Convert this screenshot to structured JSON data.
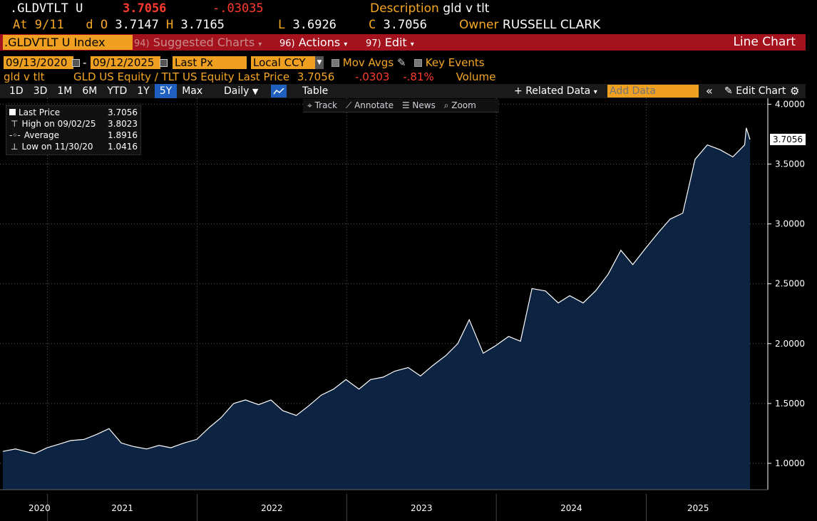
{
  "header": {
    "ticker": ".GLDVTLT U",
    "last": "3.7056",
    "change": "-.03035",
    "desc_label": "Description",
    "desc_value": "gld v tlt",
    "at_label": "At",
    "at_value": "9/11",
    "d_label": "d",
    "o_label": "O",
    "o_value": "3.7147",
    "h_label": "H",
    "h_value": "3.7165",
    "l_label": "L",
    "l_value": "3.6926",
    "c_label": "C",
    "c_value": "3.7056",
    "owner_label": "Owner",
    "owner_value": "RUSSELL CLARK"
  },
  "menubar": {
    "security": ".GLDVTLT U Index",
    "suggested_num": "94)",
    "suggested": "Suggested Charts",
    "actions_num": "96)",
    "actions": "Actions",
    "edit_num": "97)",
    "edit": "Edit",
    "chart_type": "Line Chart"
  },
  "settings": {
    "start_date": "09/13/2020",
    "sep": "-",
    "end_date": "09/12/2025",
    "field": "Last Px",
    "currency": "Local CCY",
    "mov_avgs": "Mov Avgs",
    "key_events": "Key Events"
  },
  "legend_line": {
    "name": "gld v tlt",
    "series": "GLD US Equity / TLT US Equity Last Price",
    "value": "3.7056",
    "change": "-.0303",
    "pct": "-.81%",
    "volume": "Volume"
  },
  "toolbar": {
    "periods": [
      "1D",
      "3D",
      "1M",
      "6M",
      "YTD",
      "1Y",
      "5Y",
      "Max"
    ],
    "selected_period": "5Y",
    "frequency": "Daily",
    "table": "Table",
    "related": "Related Data",
    "add_data_placeholder": "Add Data",
    "edit_chart": "Edit Chart"
  },
  "subtoolbar": {
    "track": "Track",
    "annotate": "Annotate",
    "news": "News",
    "zoom": "Zoom"
  },
  "stats": {
    "last_label": "Last Price",
    "last_value": "3.7056",
    "high_label": "High on 09/02/25",
    "high_value": "3.8023",
    "avg_label": "Average",
    "avg_value": "1.8916",
    "low_label": "Low on 11/30/20",
    "low_value": "1.0416"
  },
  "colors": {
    "area_fill": "#0c2342",
    "line": "#ffffff",
    "orange": "#f5a623",
    "red": "#ff3b30",
    "menubar": "#a3121d"
  },
  "chart_data": {
    "type": "area",
    "x_ticks": [
      "2020",
      "2021",
      "2022",
      "2023",
      "2024",
      "2025"
    ],
    "y_ticks": [
      "1.0000",
      "1.5000",
      "2.0000",
      "2.5000",
      "3.0000",
      "3.5000",
      "4.0000"
    ],
    "ylim": [
      0.78,
      4.05
    ],
    "last_label": "3.7056",
    "series": [
      {
        "name": "gld v tlt",
        "x": [
          "2020-09-14",
          "2020-10-15",
          "2020-11-30",
          "2020-12-31",
          "2021-01-29",
          "2021-02-26",
          "2021-03-31",
          "2021-04-30",
          "2021-05-31",
          "2021-06-30",
          "2021-07-30",
          "2021-08-31",
          "2021-09-30",
          "2021-10-29",
          "2021-11-30",
          "2021-12-31",
          "2022-01-31",
          "2022-02-28",
          "2022-03-31",
          "2022-04-29",
          "2022-05-31",
          "2022-06-30",
          "2022-07-29",
          "2022-08-31",
          "2022-09-30",
          "2022-10-31",
          "2022-11-30",
          "2022-12-30",
          "2023-01-31",
          "2023-02-28",
          "2023-03-31",
          "2023-04-28",
          "2023-05-31",
          "2023-06-30",
          "2023-07-31",
          "2023-08-31",
          "2023-09-29",
          "2023-10-27",
          "2023-11-30",
          "2023-12-29",
          "2024-01-31",
          "2024-02-29",
          "2024-03-28",
          "2024-04-30",
          "2024-05-31",
          "2024-06-28",
          "2024-07-31",
          "2024-08-30",
          "2024-09-30",
          "2024-10-31",
          "2024-11-29",
          "2024-12-31",
          "2025-01-31",
          "2025-02-28",
          "2025-03-31",
          "2025-04-30",
          "2025-05-30",
          "2025-06-30",
          "2025-07-31",
          "2025-08-29",
          "2025-09-02",
          "2025-09-11"
        ],
        "values": [
          1.1,
          1.12,
          1.08,
          1.13,
          1.16,
          1.19,
          1.2,
          1.24,
          1.29,
          1.17,
          1.14,
          1.12,
          1.15,
          1.13,
          1.17,
          1.2,
          1.3,
          1.38,
          1.5,
          1.53,
          1.49,
          1.53,
          1.44,
          1.4,
          1.48,
          1.57,
          1.62,
          1.7,
          1.62,
          1.7,
          1.72,
          1.77,
          1.8,
          1.73,
          1.82,
          1.9,
          2.0,
          2.2,
          1.92,
          1.98,
          2.06,
          2.02,
          2.46,
          2.44,
          2.34,
          2.4,
          2.34,
          2.44,
          2.58,
          2.78,
          2.66,
          2.8,
          2.93,
          3.04,
          3.09,
          3.54,
          3.66,
          3.62,
          3.56,
          3.66,
          3.8023,
          3.7056
        ]
      }
    ]
  }
}
